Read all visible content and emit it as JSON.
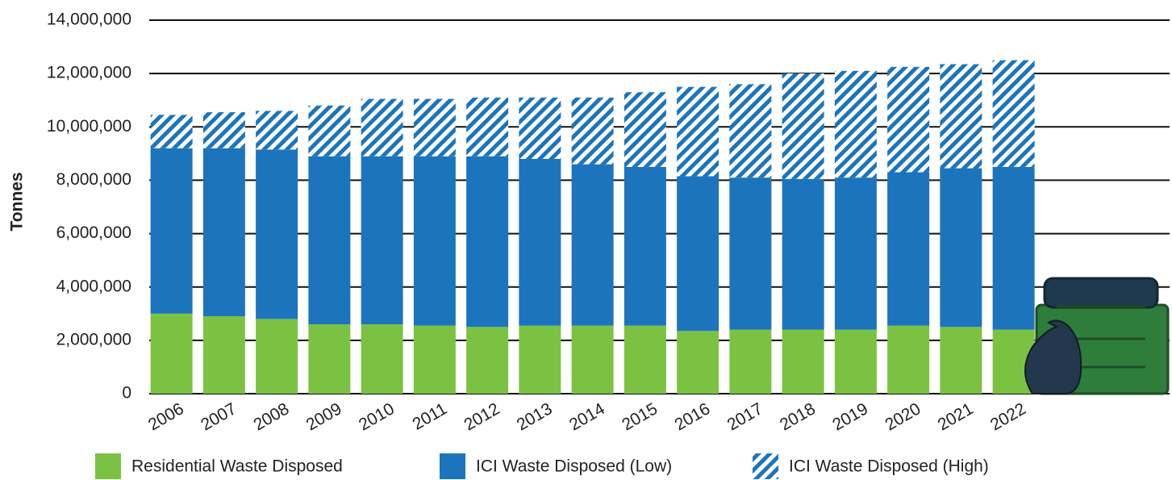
{
  "chart_data": {
    "type": "stacked_bar",
    "y_label": "Tonnes",
    "categories": [
      "2006",
      "2007",
      "2008",
      "2009",
      "2010",
      "2011",
      "2012",
      "2013",
      "2014",
      "2015",
      "2016",
      "2017",
      "2018",
      "2019",
      "2020",
      "2021",
      "2022"
    ],
    "series": [
      {
        "name": "Residential Waste Disposed",
        "color": "#7cc242",
        "values": [
          3000000,
          2900000,
          2800000,
          2600000,
          2600000,
          2550000,
          2500000,
          2550000,
          2550000,
          2550000,
          2350000,
          2400000,
          2400000,
          2400000,
          2550000,
          2500000,
          2400000
        ]
      },
      {
        "name": "ICI Waste Disposed (Low)",
        "color": "#1c75bc",
        "values": [
          6200000,
          6300000,
          6350000,
          6300000,
          6300000,
          6350000,
          6400000,
          6250000,
          6050000,
          5950000,
          5800000,
          5700000,
          5650000,
          5700000,
          5750000,
          5950000,
          6100000
        ]
      },
      {
        "name": "ICI Waste Disposed (High)",
        "color": "#1c75bc",
        "hatch": true,
        "values": [
          1250000,
          1350000,
          1450000,
          1900000,
          2150000,
          2150000,
          2200000,
          2300000,
          2500000,
          2800000,
          3350000,
          3500000,
          3950000,
          4000000,
          3950000,
          3900000,
          4000000
        ]
      }
    ],
    "ylim": [
      0,
      14000000
    ],
    "yticks": [
      0,
      {
        "value": 2000000,
        "label": "2,000,000"
      },
      {
        "value": 4000000,
        "label": "4,000,000"
      },
      {
        "value": 6000000,
        "label": "6,000,000"
      },
      {
        "value": 8000000,
        "label": "8,000,000"
      },
      {
        "value": 10000000,
        "label": "10,000,000"
      },
      {
        "value": 12000000,
        "label": "12,000,000"
      },
      {
        "value": 14000000,
        "label": "14,000,000"
      }
    ],
    "grid": true
  }
}
